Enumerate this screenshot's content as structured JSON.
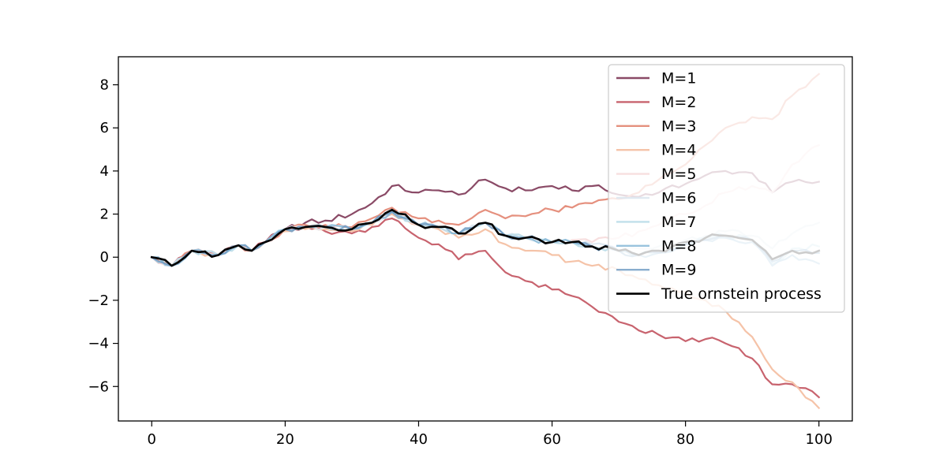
{
  "chart_data": {
    "type": "line",
    "title": "",
    "xlabel": "",
    "ylabel": "",
    "xlim": [
      -5,
      105
    ],
    "ylim": [
      -7.6,
      9.3
    ],
    "xticks": [
      0,
      20,
      40,
      60,
      80,
      100
    ],
    "yticks": [
      -6,
      -4,
      -2,
      0,
      2,
      4,
      6,
      8
    ],
    "xtick_labels": [
      "0",
      "20",
      "40",
      "60",
      "80",
      "100"
    ],
    "ytick_labels": [
      "−6",
      "−4",
      "−2",
      "0",
      "2",
      "4",
      "6",
      "8"
    ],
    "grid": false,
    "legend_position": "top-right",
    "x_anchors": [
      0,
      3,
      6,
      10,
      13,
      15,
      17,
      20,
      23,
      26,
      30,
      33,
      36,
      40,
      43,
      46,
      50,
      53,
      56,
      60,
      63,
      66,
      70,
      73,
      76,
      80,
      83,
      86,
      90,
      93,
      96,
      100
    ],
    "series": [
      {
        "name": "M=1",
        "color": "#8a4a66",
        "opacity": 1.0,
        "anchors": [
          0,
          -0.4,
          0.3,
          0.1,
          0.55,
          0.3,
          0.7,
          1.3,
          1.6,
          1.7,
          2.0,
          2.5,
          3.3,
          3.0,
          3.1,
          2.9,
          3.6,
          3.2,
          3.1,
          3.3,
          3.1,
          3.3,
          2.9,
          2.8,
          3.0,
          3.4,
          3.8,
          4.0,
          3.9,
          3.0,
          3.5,
          3.5
        ]
      },
      {
        "name": "M=2",
        "color": "#c8636e",
        "opacity": 1.0,
        "anchors": [
          0,
          -0.4,
          0.3,
          0.1,
          0.55,
          0.3,
          0.7,
          1.3,
          1.4,
          1.2,
          1.1,
          1.4,
          1.8,
          0.9,
          0.6,
          -0.1,
          0.3,
          -0.7,
          -1.1,
          -1.5,
          -1.8,
          -2.3,
          -3.0,
          -3.4,
          -3.6,
          -3.9,
          -3.8,
          -4.0,
          -4.7,
          -5.9,
          -5.9,
          -6.5
        ]
      },
      {
        "name": "M=3",
        "color": "#e5907e",
        "opacity": 1.0,
        "anchors": [
          0,
          -0.4,
          0.3,
          0.1,
          0.55,
          0.3,
          0.7,
          1.3,
          1.5,
          1.5,
          1.4,
          1.8,
          2.3,
          1.8,
          1.7,
          1.5,
          2.2,
          1.8,
          1.9,
          2.2,
          2.3,
          2.5,
          2.7,
          3.0,
          3.6,
          4.3,
          5.2,
          6.0,
          6.5,
          6.4,
          7.5,
          8.5
        ]
      },
      {
        "name": "M=4",
        "color": "#f5c3a8",
        "opacity": 1.0,
        "anchors": [
          0,
          -0.4,
          0.3,
          0.1,
          0.55,
          0.3,
          0.7,
          1.2,
          1.3,
          1.3,
          1.2,
          1.5,
          2.0,
          1.5,
          1.3,
          0.9,
          1.3,
          0.6,
          0.3,
          0.1,
          -0.2,
          -0.4,
          -0.6,
          -1.0,
          -1.3,
          -1.6,
          -2.0,
          -2.5,
          -3.7,
          -5.2,
          -5.8,
          -7.0
        ]
      },
      {
        "name": "M=5",
        "color": "#f6dcdc",
        "opacity": 0.9,
        "anchors": [
          0,
          -0.4,
          0.3,
          0.1,
          0.55,
          0.3,
          0.7,
          1.3,
          1.4,
          1.4,
          1.3,
          1.6,
          2.1,
          1.5,
          1.4,
          1.1,
          1.6,
          1.0,
          0.9,
          0.7,
          0.8,
          0.7,
          0.9,
          1.2,
          1.5,
          2.0,
          2.4,
          3.0,
          3.3,
          3.0,
          4.3,
          5.2
        ]
      },
      {
        "name": "M=6",
        "color": "#dde7f0",
        "opacity": 0.9,
        "anchors": [
          0,
          -0.4,
          0.3,
          0.1,
          0.55,
          0.3,
          0.7,
          1.3,
          1.4,
          1.4,
          1.3,
          1.6,
          2.1,
          1.5,
          1.4,
          1.1,
          1.6,
          1.0,
          0.9,
          0.7,
          0.7,
          0.6,
          0.5,
          0.4,
          0.5,
          0.8,
          1.0,
          1.2,
          1.0,
          0.4,
          1.1,
          1.6
        ]
      },
      {
        "name": "M=7",
        "color": "#b9dce8",
        "opacity": 0.9,
        "anchors": [
          0,
          -0.4,
          0.3,
          0.1,
          0.55,
          0.3,
          0.7,
          1.3,
          1.4,
          1.4,
          1.3,
          1.6,
          2.1,
          1.5,
          1.4,
          1.1,
          1.6,
          1.0,
          0.9,
          0.7,
          0.7,
          0.5,
          0.3,
          0.1,
          0.3,
          0.7,
          0.9,
          1.0,
          0.8,
          -0.3,
          0.4,
          0.5
        ]
      },
      {
        "name": "M=8",
        "color": "#7fb4d4",
        "opacity": 0.8,
        "anchors": [
          0,
          -0.4,
          0.3,
          0.1,
          0.55,
          0.3,
          0.7,
          1.3,
          1.4,
          1.4,
          1.3,
          1.6,
          2.1,
          1.5,
          1.4,
          1.1,
          1.6,
          1.0,
          0.9,
          0.7,
          0.7,
          0.5,
          0.3,
          0.1,
          0.2,
          0.6,
          0.8,
          0.9,
          0.7,
          -0.4,
          0.1,
          -0.3
        ]
      },
      {
        "name": "M=9",
        "color": "#6b98c2",
        "opacity": 0.8,
        "anchors": [
          0,
          -0.4,
          0.3,
          0.1,
          0.55,
          0.3,
          0.7,
          1.3,
          1.4,
          1.4,
          1.3,
          1.6,
          2.1,
          1.5,
          1.4,
          1.1,
          1.6,
          1.0,
          0.9,
          0.7,
          0.7,
          0.5,
          0.3,
          0.1,
          0.2,
          0.6,
          0.8,
          1.0,
          0.8,
          -0.2,
          0.3,
          0.2
        ]
      },
      {
        "name": "True ornstein process",
        "color": "#000000",
        "opacity": 1.0,
        "anchors": [
          0,
          -0.4,
          0.3,
          0.1,
          0.55,
          0.3,
          0.7,
          1.3,
          1.4,
          1.4,
          1.3,
          1.6,
          2.2,
          1.5,
          1.4,
          1.1,
          1.6,
          1.0,
          0.9,
          0.7,
          0.7,
          0.5,
          0.3,
          0.1,
          0.3,
          0.7,
          0.9,
          1.0,
          0.8,
          -0.1,
          0.3,
          0.3
        ]
      }
    ]
  }
}
